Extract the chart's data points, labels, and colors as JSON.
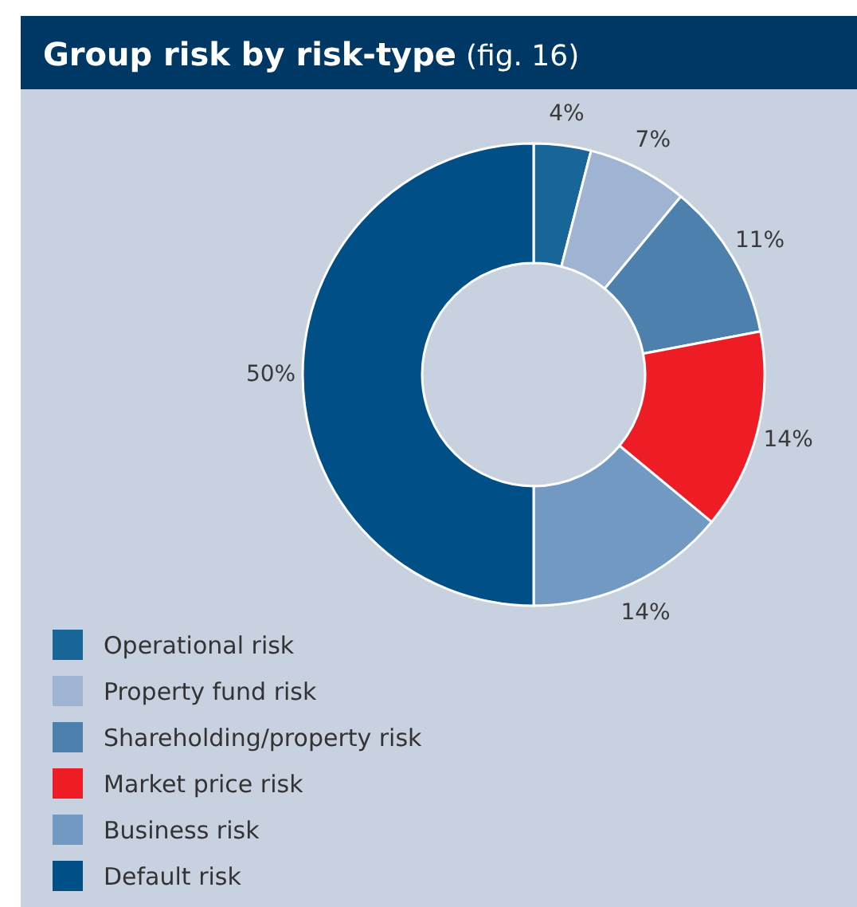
{
  "chart_data": {
    "type": "donut",
    "title": "Group risk by risk-type",
    "subtitle": "(fig. 16)",
    "categories": [
      "Operational risk",
      "Property fund risk",
      "Shareholding/property risk",
      "Market price risk",
      "Business risk",
      "Default risk"
    ],
    "values": [
      4,
      7,
      11,
      14,
      14,
      50
    ],
    "value_labels": [
      "4%",
      "7%",
      "11%",
      "14%",
      "14%",
      "50%"
    ],
    "colors": [
      "#186598",
      "#9fb4d2",
      "#4e80ad",
      "#ee1c25",
      "#7299c2",
      "#004f86"
    ],
    "legend": "bottom"
  }
}
